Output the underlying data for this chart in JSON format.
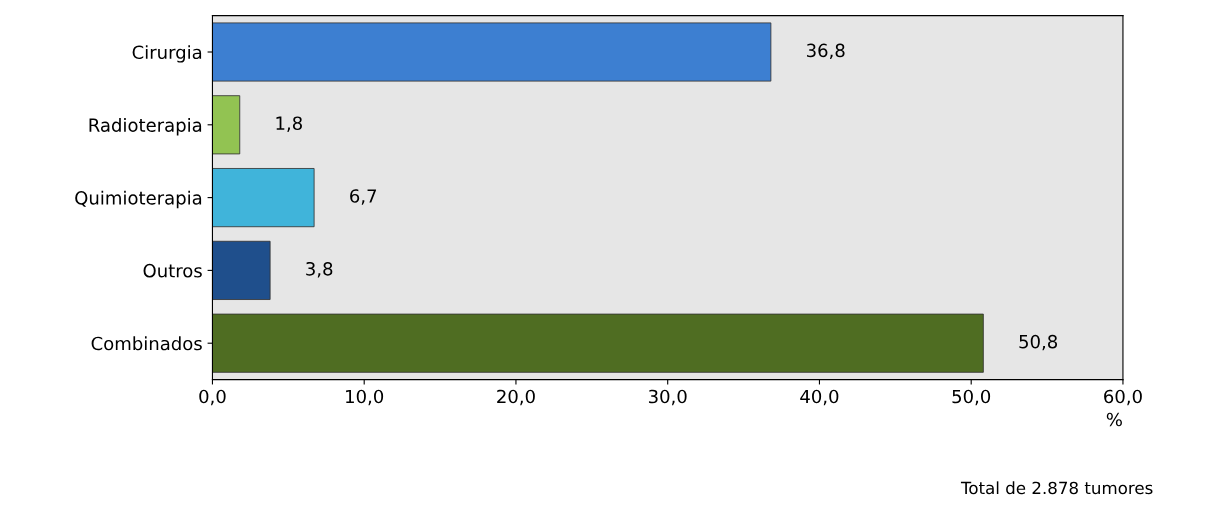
{
  "chart_data": {
    "type": "bar",
    "orientation": "horizontal",
    "xlabel": "%",
    "categories": [
      "Cirurgia",
      "Radioterapia",
      "Quimioterapia",
      "Outros",
      "Combinados"
    ],
    "values": [
      36.8,
      1.8,
      6.7,
      3.8,
      50.8
    ],
    "colors": [
      "#3d7fd1",
      "#92c352",
      "#40b4da",
      "#1f4f8c",
      "#4f6d22"
    ],
    "value_labels": [
      "36,8",
      "1,8",
      "6,7",
      "3,8",
      "50,8"
    ],
    "xlim": [
      0,
      60
    ],
    "xticks": [
      {
        "value": 0,
        "label": "0,0"
      },
      {
        "value": 10,
        "label": "10,0"
      },
      {
        "value": 20,
        "label": "20,0"
      },
      {
        "value": 30,
        "label": "30,0"
      },
      {
        "value": 40,
        "label": "40,0"
      },
      {
        "value": 50,
        "label": "50,0"
      },
      {
        "value": 60,
        "label": "60,0"
      }
    ],
    "grid": false,
    "legend": false,
    "annotations": [
      "Total de 2.878 tumores"
    ]
  }
}
